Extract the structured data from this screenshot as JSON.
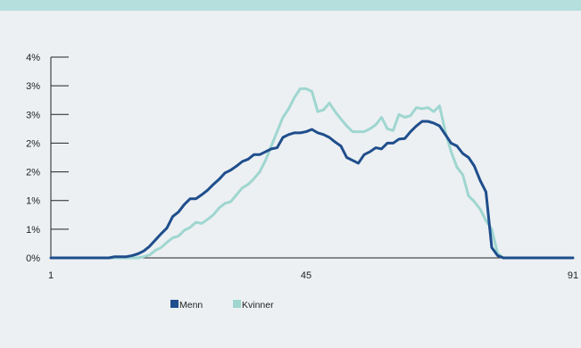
{
  "chart_data": {
    "type": "line",
    "title": "",
    "xlabel": "",
    "ylabel": "",
    "x_ticks": [
      "1",
      "45",
      "91"
    ],
    "xlim": [
      1,
      91
    ],
    "y_ticks": [
      "0%",
      "1%",
      "1%",
      "2%",
      "2%",
      "3%",
      "3%",
      "4%"
    ],
    "ylim": [
      0,
      3.5
    ],
    "y_unit": "%",
    "grid": false,
    "legend_position": "bottom-left",
    "x": [
      1,
      2,
      3,
      4,
      5,
      6,
      7,
      8,
      9,
      10,
      11,
      12,
      13,
      14,
      15,
      16,
      17,
      18,
      19,
      20,
      21,
      22,
      23,
      24,
      25,
      26,
      27,
      28,
      29,
      30,
      31,
      32,
      33,
      34,
      35,
      36,
      37,
      38,
      39,
      40,
      41,
      42,
      43,
      44,
      45,
      46,
      47,
      48,
      49,
      50,
      51,
      52,
      53,
      54,
      55,
      56,
      57,
      58,
      59,
      60,
      61,
      62,
      63,
      64,
      65,
      66,
      67,
      68,
      69,
      70,
      71,
      72,
      73,
      74,
      75,
      76,
      77,
      78,
      79,
      80,
      81,
      82,
      83,
      84,
      85,
      86,
      87,
      88,
      89,
      90,
      91
    ],
    "series": [
      {
        "name": "Menn",
        "color": "#1f4e8c",
        "values": [
          0,
          0,
          0,
          0,
          0,
          0,
          0,
          0,
          0,
          0,
          0,
          0.02,
          0.02,
          0.02,
          0.04,
          0.07,
          0.12,
          0.2,
          0.31,
          0.42,
          0.52,
          0.72,
          0.8,
          0.93,
          1.03,
          1.03,
          1.1,
          1.18,
          1.28,
          1.37,
          1.48,
          1.53,
          1.6,
          1.68,
          1.72,
          1.8,
          1.8,
          1.85,
          1.9,
          1.92,
          2.1,
          2.15,
          2.18,
          2.18,
          2.2,
          2.24,
          2.18,
          2.15,
          2.1,
          2.02,
          1.95,
          1.75,
          1.7,
          1.65,
          1.8,
          1.85,
          1.92,
          1.9,
          2.0,
          2.0,
          2.07,
          2.08,
          2.2,
          2.3,
          2.38,
          2.38,
          2.35,
          2.3,
          2.15,
          2.0,
          1.95,
          1.82,
          1.75,
          1.6,
          1.35,
          1.15,
          0.18,
          0.04,
          0,
          0,
          0,
          0,
          0,
          0,
          0,
          0,
          0,
          0,
          0,
          0,
          0
        ]
      },
      {
        "name": "Kvinner",
        "color": "#9fd6d0",
        "values": [
          0,
          0,
          0,
          0,
          0,
          0,
          0,
          0,
          0,
          0,
          0,
          0,
          0,
          0,
          0,
          0,
          0.02,
          0.05,
          0.13,
          0.18,
          0.27,
          0.35,
          0.38,
          0.48,
          0.53,
          0.62,
          0.6,
          0.67,
          0.75,
          0.87,
          0.95,
          0.98,
          1.1,
          1.22,
          1.28,
          1.38,
          1.5,
          1.7,
          1.95,
          2.2,
          2.45,
          2.6,
          2.8,
          2.95,
          2.95,
          2.9,
          2.55,
          2.58,
          2.7,
          2.55,
          2.42,
          2.3,
          2.2,
          2.2,
          2.2,
          2.25,
          2.32,
          2.45,
          2.25,
          2.22,
          2.5,
          2.45,
          2.48,
          2.62,
          2.6,
          2.62,
          2.55,
          2.65,
          2.2,
          1.85,
          1.58,
          1.45,
          1.08,
          0.98,
          0.85,
          0.65,
          0.5,
          0.08,
          0,
          0,
          0,
          0,
          0,
          0,
          0,
          0,
          0,
          0,
          0,
          0,
          0
        ]
      }
    ]
  }
}
